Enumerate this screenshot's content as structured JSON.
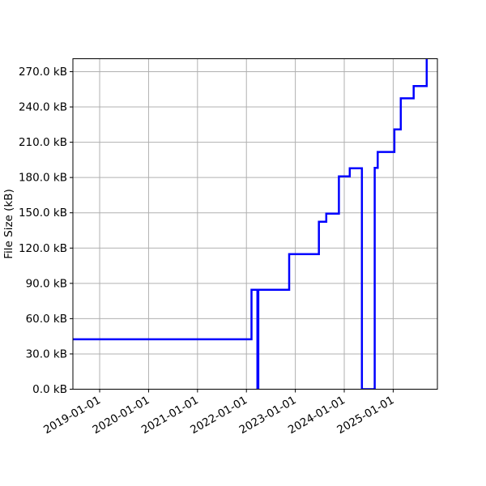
{
  "chart_data": {
    "type": "line",
    "subtype": "step-post",
    "title": "",
    "xlabel": "",
    "ylabel": "File Size (kB)",
    "legend": null,
    "grid": true,
    "line_color": "#0000ff",
    "grid_color": "#b0b0b0",
    "spine_color": "#000000",
    "background_color": "#ffffff",
    "x_ticks": [
      {
        "label": "2019-01-01",
        "year": 2019
      },
      {
        "label": "2020-01-01",
        "year": 2020
      },
      {
        "label": "2021-01-01",
        "year": 2021
      },
      {
        "label": "2022-01-01",
        "year": 2022
      },
      {
        "label": "2023-01-01",
        "year": 2023
      },
      {
        "label": "2024-01-01",
        "year": 2024
      },
      {
        "label": "2025-01-01",
        "year": 2025
      }
    ],
    "y_ticks": [
      {
        "label": "0.0 kB",
        "value": 0
      },
      {
        "label": "30.0 kB",
        "value": 30
      },
      {
        "label": "60.0 kB",
        "value": 60
      },
      {
        "label": "90.0 kB",
        "value": 90
      },
      {
        "label": "120.0 kB",
        "value": 120
      },
      {
        "label": "150.0 kB",
        "value": 150
      },
      {
        "label": "180.0 kB",
        "value": 180
      },
      {
        "label": "210.0 kB",
        "value": 210
      },
      {
        "label": "240.0 kB",
        "value": 240
      },
      {
        "label": "270.0 kB",
        "value": 270
      }
    ],
    "xlim_year_fraction": [
      2018.453,
      2025.904
    ],
    "ylim_kb": [
      0,
      281
    ],
    "points": [
      {
        "date": "2018-06-14",
        "kb": 42.4
      },
      {
        "date": "2022-02-08",
        "kb": 84.5
      },
      {
        "date": "2022-03-24",
        "kb": 0.0
      },
      {
        "date": "2022-03-31",
        "kb": 84.5
      },
      {
        "date": "2022-11-16",
        "kb": 114.9
      },
      {
        "date": "2023-06-26",
        "kb": 142.4
      },
      {
        "date": "2023-08-20",
        "kb": 149.3
      },
      {
        "date": "2023-11-22",
        "kb": 180.9
      },
      {
        "date": "2024-02-11",
        "kb": 187.9
      },
      {
        "date": "2024-05-12",
        "kb": 0.0
      },
      {
        "date": "2024-08-16",
        "kb": 188.2
      },
      {
        "date": "2024-09-07",
        "kb": 201.7
      },
      {
        "date": "2025-01-10",
        "kb": 220.9
      },
      {
        "date": "2025-02-27",
        "kb": 247.3
      },
      {
        "date": "2025-06-03",
        "kb": 257.7
      },
      {
        "date": "2025-09-08",
        "kb": 281.0
      }
    ]
  }
}
